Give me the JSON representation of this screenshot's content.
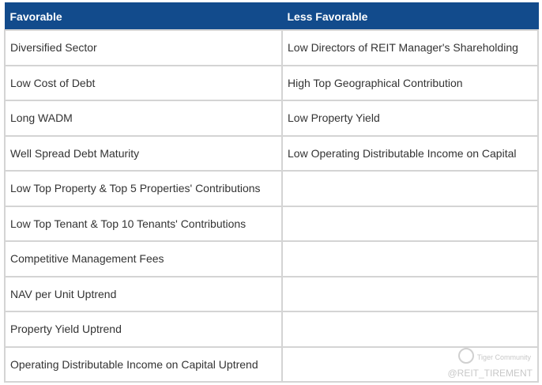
{
  "table": {
    "headers": [
      "Favorable",
      "Less Favorable"
    ],
    "favorable": [
      "Diversified Sector",
      "Low Cost of Debt",
      "Long WADM",
      "Well Spread Debt Maturity",
      "Low Top Property & Top 5 Properties' Contributions",
      "Low Top Tenant & Top 10 Tenants' Contributions",
      "Competitive Management Fees",
      "NAV per Unit Uptrend",
      "Property Yield Uptrend",
      "Operating Distributable Income on Capital Uptrend"
    ],
    "less_favorable": [
      "Low Directors of REIT Manager's Shareholding",
      "High Top Geographical Contribution",
      "Low Property Yield",
      "Low Operating Distributable Income on Capital"
    ]
  },
  "watermark": {
    "brand": "Tiger Community",
    "handle": "@REIT_TIREMENT"
  }
}
